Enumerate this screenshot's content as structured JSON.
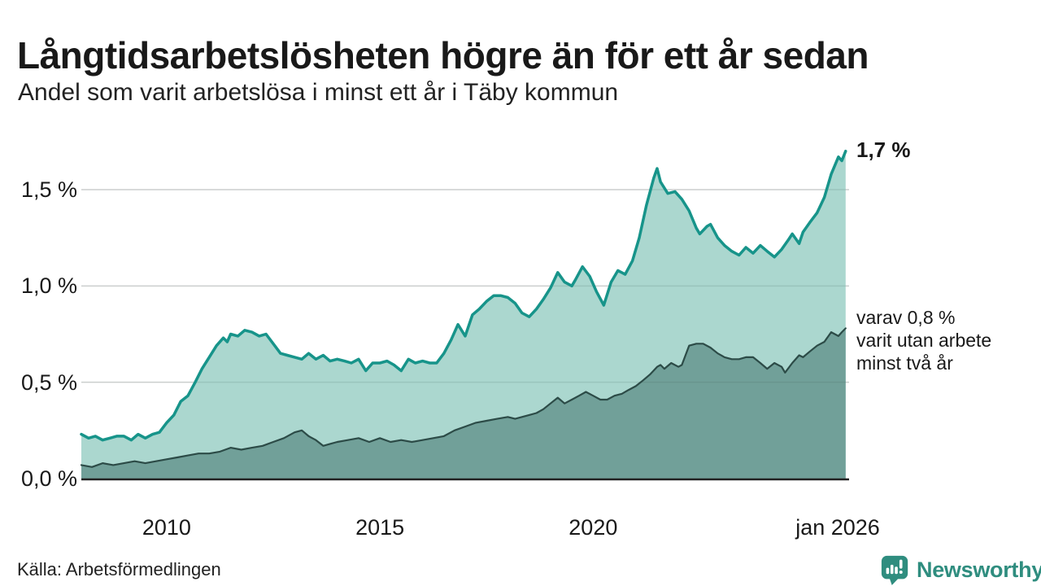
{
  "header": {
    "title": "Långtidsarbetslösheten högre än för ett år sedan",
    "subtitle": "Andel som varit arbetslösa i minst ett år i Täby kommun"
  },
  "annotations": {
    "latest_value": "1,7 %",
    "secondary_line1": "varav 0,8 %",
    "secondary_line2": "varit utan arbete",
    "secondary_line3": "minst två år"
  },
  "footer": {
    "source": "Källa: Arbetsförmedlingen",
    "brand_name": "Newsworthy",
    "brand_icon": "newsworthy-speech-bubble-bar-chart-icon"
  },
  "colors": {
    "series1_line": "#17948a",
    "series1_fill": "#abd7cf",
    "series2_line": "#2c4b47",
    "series2_fill": "#71a099",
    "gridline": "#e3e3e3",
    "gridline_overlay": "rgba(60,85,80,0.14)",
    "baseline": "#222222",
    "brand": "#2f8d7f",
    "text": "#191919"
  },
  "chart_data": {
    "type": "area",
    "title": "Långtidsarbetslösheten högre än för ett år sedan",
    "subtitle": "Andel som varit arbetslösa i minst ett år i Täby kommun",
    "x_unit": "decimal_year",
    "y_unit": "percent",
    "xlim": [
      2008,
      2026
    ],
    "ylim": [
      0,
      1.78
    ],
    "grid": "horizontal",
    "legend_position": "none",
    "x_ticks": [
      {
        "value": 2010,
        "label": "2010"
      },
      {
        "value": 2015,
        "label": "2015"
      },
      {
        "value": 2020,
        "label": "2020"
      },
      {
        "value": 2026,
        "label": "jan 2026"
      }
    ],
    "y_ticks": [
      {
        "value": 0.0,
        "label": "0,0 %"
      },
      {
        "value": 0.5,
        "label": "0,5 %"
      },
      {
        "value": 1.0,
        "label": "1,0 %"
      },
      {
        "value": 1.5,
        "label": "1,5 %"
      }
    ],
    "series": [
      {
        "name": "Andel arbetslösa minst ett år",
        "end_value_label": "1,7 %",
        "points": [
          [
            2008.0,
            0.23
          ],
          [
            2008.17,
            0.21
          ],
          [
            2008.33,
            0.22
          ],
          [
            2008.5,
            0.2
          ],
          [
            2008.67,
            0.21
          ],
          [
            2008.83,
            0.22
          ],
          [
            2009.0,
            0.22
          ],
          [
            2009.17,
            0.2
          ],
          [
            2009.33,
            0.23
          ],
          [
            2009.5,
            0.21
          ],
          [
            2009.67,
            0.23
          ],
          [
            2009.83,
            0.24
          ],
          [
            2010.0,
            0.29
          ],
          [
            2010.17,
            0.33
          ],
          [
            2010.33,
            0.4
          ],
          [
            2010.5,
            0.43
          ],
          [
            2010.67,
            0.5
          ],
          [
            2010.83,
            0.57
          ],
          [
            2011.0,
            0.63
          ],
          [
            2011.17,
            0.69
          ],
          [
            2011.33,
            0.73
          ],
          [
            2011.42,
            0.71
          ],
          [
            2011.5,
            0.75
          ],
          [
            2011.67,
            0.74
          ],
          [
            2011.83,
            0.77
          ],
          [
            2012.0,
            0.76
          ],
          [
            2012.17,
            0.74
          ],
          [
            2012.33,
            0.75
          ],
          [
            2012.5,
            0.7
          ],
          [
            2012.67,
            0.65
          ],
          [
            2012.83,
            0.64
          ],
          [
            2013.0,
            0.63
          ],
          [
            2013.17,
            0.62
          ],
          [
            2013.33,
            0.65
          ],
          [
            2013.5,
            0.62
          ],
          [
            2013.67,
            0.64
          ],
          [
            2013.83,
            0.61
          ],
          [
            2014.0,
            0.62
          ],
          [
            2014.17,
            0.61
          ],
          [
            2014.33,
            0.6
          ],
          [
            2014.5,
            0.62
          ],
          [
            2014.67,
            0.56
          ],
          [
            2014.83,
            0.6
          ],
          [
            2015.0,
            0.6
          ],
          [
            2015.17,
            0.61
          ],
          [
            2015.33,
            0.59
          ],
          [
            2015.5,
            0.56
          ],
          [
            2015.67,
            0.62
          ],
          [
            2015.83,
            0.6
          ],
          [
            2016.0,
            0.61
          ],
          [
            2016.17,
            0.6
          ],
          [
            2016.33,
            0.6
          ],
          [
            2016.5,
            0.65
          ],
          [
            2016.67,
            0.72
          ],
          [
            2016.83,
            0.8
          ],
          [
            2017.0,
            0.74
          ],
          [
            2017.17,
            0.85
          ],
          [
            2017.33,
            0.88
          ],
          [
            2017.5,
            0.92
          ],
          [
            2017.67,
            0.95
          ],
          [
            2017.83,
            0.95
          ],
          [
            2018.0,
            0.94
          ],
          [
            2018.17,
            0.91
          ],
          [
            2018.33,
            0.86
          ],
          [
            2018.5,
            0.84
          ],
          [
            2018.67,
            0.88
          ],
          [
            2018.83,
            0.93
          ],
          [
            2019.0,
            0.99
          ],
          [
            2019.17,
            1.07
          ],
          [
            2019.33,
            1.02
          ],
          [
            2019.5,
            1.0
          ],
          [
            2019.58,
            1.03
          ],
          [
            2019.75,
            1.1
          ],
          [
            2019.92,
            1.05
          ],
          [
            2020.08,
            0.97
          ],
          [
            2020.25,
            0.9
          ],
          [
            2020.42,
            1.02
          ],
          [
            2020.58,
            1.08
          ],
          [
            2020.75,
            1.06
          ],
          [
            2020.92,
            1.13
          ],
          [
            2021.08,
            1.25
          ],
          [
            2021.25,
            1.42
          ],
          [
            2021.42,
            1.56
          ],
          [
            2021.5,
            1.61
          ],
          [
            2021.58,
            1.54
          ],
          [
            2021.75,
            1.48
          ],
          [
            2021.92,
            1.49
          ],
          [
            2022.08,
            1.45
          ],
          [
            2022.25,
            1.39
          ],
          [
            2022.42,
            1.3
          ],
          [
            2022.5,
            1.27
          ],
          [
            2022.67,
            1.31
          ],
          [
            2022.75,
            1.32
          ],
          [
            2022.92,
            1.25
          ],
          [
            2023.08,
            1.21
          ],
          [
            2023.25,
            1.18
          ],
          [
            2023.42,
            1.16
          ],
          [
            2023.58,
            1.2
          ],
          [
            2023.75,
            1.17
          ],
          [
            2023.92,
            1.21
          ],
          [
            2024.08,
            1.18
          ],
          [
            2024.25,
            1.15
          ],
          [
            2024.42,
            1.19
          ],
          [
            2024.58,
            1.24
          ],
          [
            2024.67,
            1.27
          ],
          [
            2024.83,
            1.22
          ],
          [
            2024.92,
            1.28
          ],
          [
            2025.08,
            1.33
          ],
          [
            2025.25,
            1.38
          ],
          [
            2025.42,
            1.46
          ],
          [
            2025.58,
            1.58
          ],
          [
            2025.75,
            1.67
          ],
          [
            2025.83,
            1.65
          ],
          [
            2025.92,
            1.7
          ]
        ]
      },
      {
        "name": "varav utan arbete minst två år",
        "end_value_label": "0,8 %",
        "points": [
          [
            2008.0,
            0.07
          ],
          [
            2008.25,
            0.06
          ],
          [
            2008.5,
            0.08
          ],
          [
            2008.75,
            0.07
          ],
          [
            2009.0,
            0.08
          ],
          [
            2009.25,
            0.09
          ],
          [
            2009.5,
            0.08
          ],
          [
            2009.75,
            0.09
          ],
          [
            2010.0,
            0.1
          ],
          [
            2010.25,
            0.11
          ],
          [
            2010.5,
            0.12
          ],
          [
            2010.75,
            0.13
          ],
          [
            2011.0,
            0.13
          ],
          [
            2011.25,
            0.14
          ],
          [
            2011.5,
            0.16
          ],
          [
            2011.75,
            0.15
          ],
          [
            2012.0,
            0.16
          ],
          [
            2012.25,
            0.17
          ],
          [
            2012.5,
            0.19
          ],
          [
            2012.75,
            0.21
          ],
          [
            2013.0,
            0.24
          ],
          [
            2013.17,
            0.25
          ],
          [
            2013.33,
            0.22
          ],
          [
            2013.5,
            0.2
          ],
          [
            2013.67,
            0.17
          ],
          [
            2013.83,
            0.18
          ],
          [
            2014.0,
            0.19
          ],
          [
            2014.25,
            0.2
          ],
          [
            2014.5,
            0.21
          ],
          [
            2014.75,
            0.19
          ],
          [
            2015.0,
            0.21
          ],
          [
            2015.25,
            0.19
          ],
          [
            2015.5,
            0.2
          ],
          [
            2015.75,
            0.19
          ],
          [
            2016.0,
            0.2
          ],
          [
            2016.25,
            0.21
          ],
          [
            2016.5,
            0.22
          ],
          [
            2016.75,
            0.25
          ],
          [
            2017.0,
            0.27
          ],
          [
            2017.25,
            0.29
          ],
          [
            2017.5,
            0.3
          ],
          [
            2017.75,
            0.31
          ],
          [
            2018.0,
            0.32
          ],
          [
            2018.17,
            0.31
          ],
          [
            2018.33,
            0.32
          ],
          [
            2018.5,
            0.33
          ],
          [
            2018.67,
            0.34
          ],
          [
            2018.83,
            0.36
          ],
          [
            2019.0,
            0.39
          ],
          [
            2019.17,
            0.42
          ],
          [
            2019.33,
            0.39
          ],
          [
            2019.5,
            0.41
          ],
          [
            2019.67,
            0.43
          ],
          [
            2019.83,
            0.45
          ],
          [
            2020.0,
            0.43
          ],
          [
            2020.17,
            0.41
          ],
          [
            2020.33,
            0.41
          ],
          [
            2020.5,
            0.43
          ],
          [
            2020.67,
            0.44
          ],
          [
            2020.83,
            0.46
          ],
          [
            2021.0,
            0.48
          ],
          [
            2021.17,
            0.51
          ],
          [
            2021.33,
            0.54
          ],
          [
            2021.5,
            0.58
          ],
          [
            2021.58,
            0.59
          ],
          [
            2021.67,
            0.57
          ],
          [
            2021.83,
            0.6
          ],
          [
            2022.0,
            0.58
          ],
          [
            2022.08,
            0.59
          ],
          [
            2022.25,
            0.69
          ],
          [
            2022.42,
            0.7
          ],
          [
            2022.58,
            0.7
          ],
          [
            2022.75,
            0.68
          ],
          [
            2022.92,
            0.65
          ],
          [
            2023.08,
            0.63
          ],
          [
            2023.25,
            0.62
          ],
          [
            2023.42,
            0.62
          ],
          [
            2023.58,
            0.63
          ],
          [
            2023.75,
            0.63
          ],
          [
            2023.92,
            0.6
          ],
          [
            2024.08,
            0.57
          ],
          [
            2024.25,
            0.6
          ],
          [
            2024.42,
            0.58
          ],
          [
            2024.5,
            0.55
          ],
          [
            2024.67,
            0.6
          ],
          [
            2024.83,
            0.64
          ],
          [
            2024.92,
            0.63
          ],
          [
            2025.08,
            0.66
          ],
          [
            2025.25,
            0.69
          ],
          [
            2025.42,
            0.71
          ],
          [
            2025.58,
            0.76
          ],
          [
            2025.75,
            0.74
          ],
          [
            2025.83,
            0.76
          ],
          [
            2025.92,
            0.78
          ]
        ]
      }
    ]
  }
}
